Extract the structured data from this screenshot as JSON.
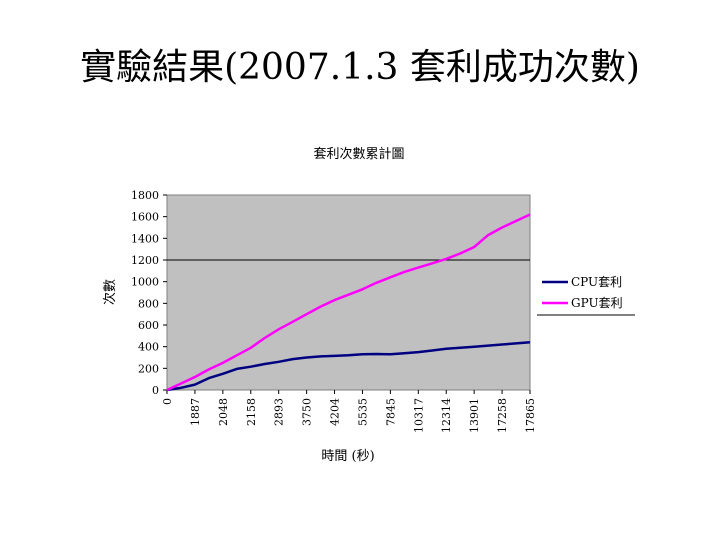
{
  "slide": {
    "title": "實驗結果(2007.1.3 套利成功次數)"
  },
  "chart_data": {
    "type": "line",
    "title": "套利次數累計圖",
    "xlabel": "時間 (秒)",
    "ylabel": "次數",
    "ylim": [
      0,
      1800
    ],
    "yticks": [
      0,
      200,
      400,
      600,
      800,
      1000,
      1200,
      1400,
      1600,
      1800
    ],
    "x_tick_labels": [
      "0",
      "1887",
      "2048",
      "2158",
      "2893",
      "3750",
      "4204",
      "5535",
      "7845",
      "10317",
      "12314",
      "13901",
      "17258",
      "17865"
    ],
    "gridline": 1200,
    "grid": true,
    "legend_position": "right",
    "series": [
      {
        "name": "CPU套利",
        "color": "#000080",
        "values": [
          0,
          20,
          50,
          110,
          150,
          195,
          215,
          240,
          260,
          285,
          300,
          310,
          315,
          320,
          330,
          332,
          330,
          340,
          350,
          365,
          380,
          390,
          400,
          410,
          420,
          430,
          440
        ]
      },
      {
        "name": "GPU套利",
        "color": "#ff00ff",
        "values": [
          0,
          60,
          120,
          190,
          250,
          320,
          390,
          480,
          560,
          630,
          700,
          770,
          830,
          880,
          930,
          990,
          1040,
          1090,
          1130,
          1170,
          1210,
          1260,
          1320,
          1430,
          1500,
          1560,
          1620
        ]
      }
    ]
  }
}
